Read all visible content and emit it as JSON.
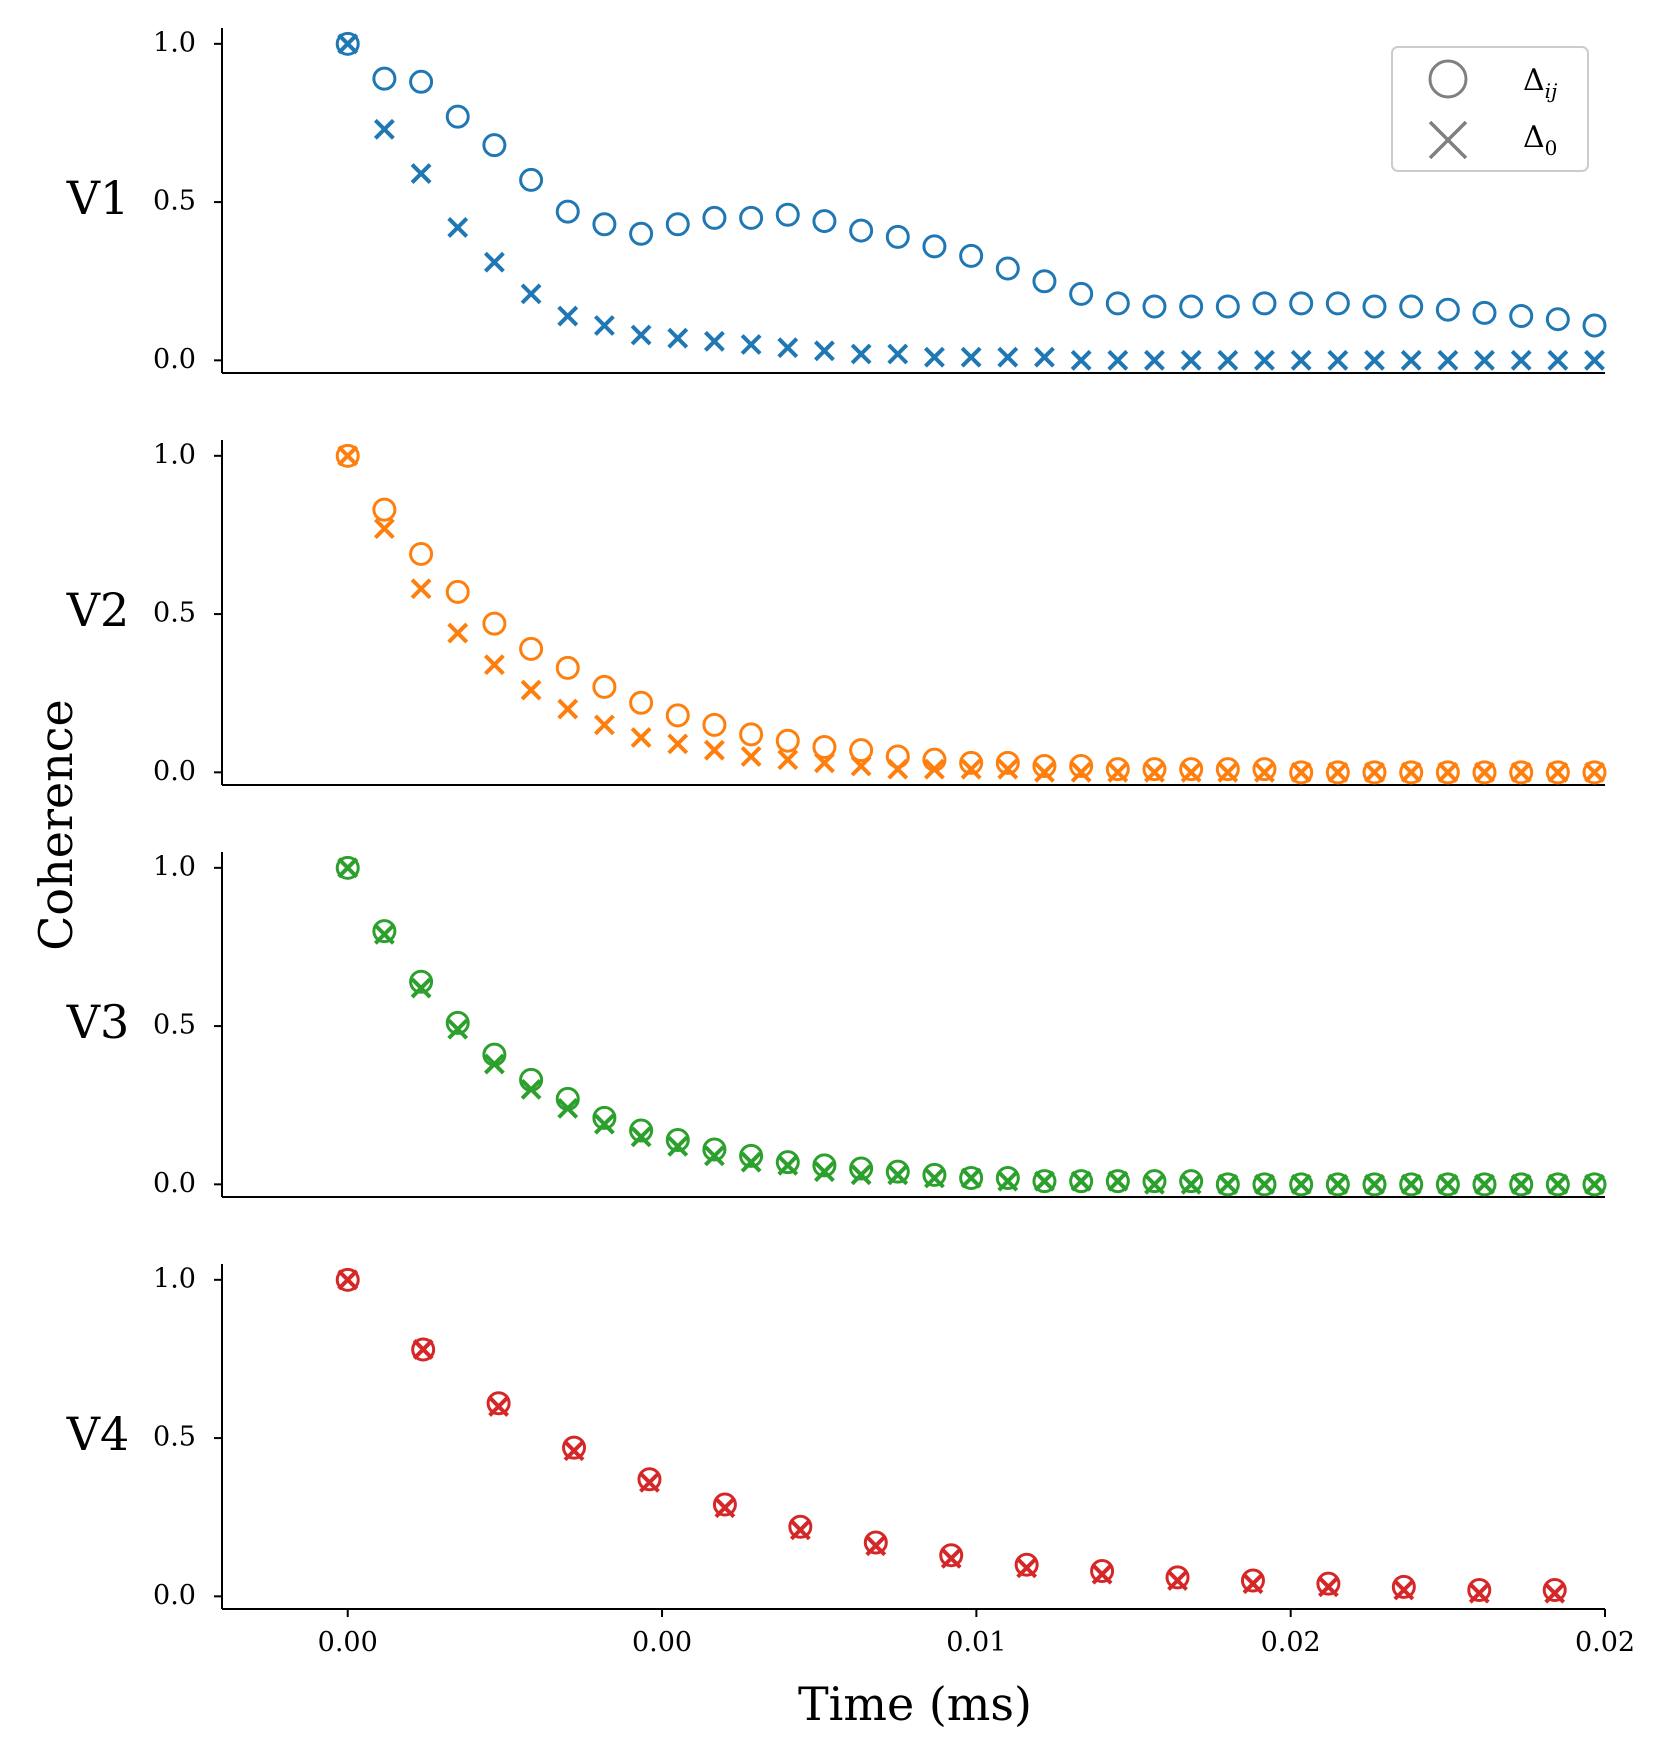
{
  "figure": {
    "ylabel": "Coherence",
    "xlabel": "Time (ms)"
  },
  "legend": {
    "location": "upper-right of first panel",
    "entries": [
      {
        "marker": "circle-icon",
        "label": "Δ",
        "sub": "ij"
      },
      {
        "marker": "x-icon",
        "label": "Δ",
        "sub": "0"
      }
    ],
    "color": "#808080"
  },
  "chart_data": [
    {
      "type": "scatter",
      "panel_label": "V1",
      "color": "#1f77b4",
      "xlim": [
        -0.002,
        0.02
      ],
      "ylim": [
        -0.04,
        1.05
      ],
      "yticks": [
        0.0,
        0.5,
        1.0
      ],
      "ytick_labels": [
        "0.0",
        "0.5",
        "1.0"
      ],
      "series": [
        {
          "marker": "circle",
          "x": [
            0,
            0.000583,
            0.001167,
            0.00175,
            0.002333,
            0.002917,
            0.0035,
            0.004083,
            0.004667,
            0.00525,
            0.005833,
            0.006417,
            0.007,
            0.007583,
            0.008167,
            0.00875,
            0.009333,
            0.009917,
            0.0105,
            0.011083,
            0.011667,
            0.01225,
            0.012833,
            0.013417,
            0.014,
            0.014583,
            0.015167,
            0.01575,
            0.016333,
            0.016917,
            0.0175,
            0.018083,
            0.018667,
            0.01925,
            0.019833
          ],
          "y": [
            1.0,
            0.89,
            0.88,
            0.77,
            0.68,
            0.57,
            0.47,
            0.43,
            0.4,
            0.43,
            0.45,
            0.45,
            0.46,
            0.44,
            0.41,
            0.39,
            0.36,
            0.33,
            0.29,
            0.25,
            0.21,
            0.18,
            0.17,
            0.17,
            0.17,
            0.18,
            0.18,
            0.18,
            0.17,
            0.17,
            0.16,
            0.15,
            0.14,
            0.13,
            0.11
          ]
        },
        {
          "marker": "x",
          "x": [
            0,
            0.000583,
            0.001167,
            0.00175,
            0.002333,
            0.002917,
            0.0035,
            0.004083,
            0.004667,
            0.00525,
            0.005833,
            0.006417,
            0.007,
            0.007583,
            0.008167,
            0.00875,
            0.009333,
            0.009917,
            0.0105,
            0.011083,
            0.011667,
            0.01225,
            0.012833,
            0.013417,
            0.014,
            0.014583,
            0.015167,
            0.01575,
            0.016333,
            0.016917,
            0.0175,
            0.018083,
            0.018667,
            0.01925,
            0.019833
          ],
          "y": [
            1.0,
            0.73,
            0.59,
            0.42,
            0.31,
            0.21,
            0.14,
            0.11,
            0.08,
            0.07,
            0.06,
            0.05,
            0.04,
            0.03,
            0.02,
            0.02,
            0.01,
            0.01,
            0.01,
            0.01,
            0.0,
            0.0,
            0.0,
            0.0,
            0.0,
            0.0,
            0.0,
            0.0,
            0.0,
            0.0,
            0.0,
            0.0,
            0.0,
            0.0,
            0.0
          ]
        }
      ]
    },
    {
      "type": "scatter",
      "panel_label": "V2",
      "color": "#ff7f0e",
      "xlim": [
        -0.002,
        0.02
      ],
      "ylim": [
        -0.04,
        1.05
      ],
      "yticks": [
        0.0,
        0.5,
        1.0
      ],
      "ytick_labels": [
        "0.0",
        "0.5",
        "1.0"
      ],
      "series": [
        {
          "marker": "circle",
          "x": [
            0,
            0.000583,
            0.001167,
            0.00175,
            0.002333,
            0.002917,
            0.0035,
            0.004083,
            0.004667,
            0.00525,
            0.005833,
            0.006417,
            0.007,
            0.007583,
            0.008167,
            0.00875,
            0.009333,
            0.009917,
            0.0105,
            0.011083,
            0.011667,
            0.01225,
            0.012833,
            0.013417,
            0.014,
            0.014583,
            0.015167,
            0.01575,
            0.016333,
            0.016917,
            0.0175,
            0.018083,
            0.018667,
            0.01925,
            0.019833
          ],
          "y": [
            1.0,
            0.83,
            0.69,
            0.57,
            0.47,
            0.39,
            0.33,
            0.27,
            0.22,
            0.18,
            0.15,
            0.12,
            0.1,
            0.08,
            0.07,
            0.05,
            0.04,
            0.03,
            0.03,
            0.02,
            0.02,
            0.01,
            0.01,
            0.01,
            0.01,
            0.01,
            0.0,
            0.0,
            0.0,
            0.0,
            0.0,
            0.0,
            0.0,
            0.0,
            0.0
          ]
        },
        {
          "marker": "x",
          "x": [
            0,
            0.000583,
            0.001167,
            0.00175,
            0.002333,
            0.002917,
            0.0035,
            0.004083,
            0.004667,
            0.00525,
            0.005833,
            0.006417,
            0.007,
            0.007583,
            0.008167,
            0.00875,
            0.009333,
            0.009917,
            0.0105,
            0.011083,
            0.011667,
            0.01225,
            0.012833,
            0.013417,
            0.014,
            0.014583,
            0.015167,
            0.01575,
            0.016333,
            0.016917,
            0.0175,
            0.018083,
            0.018667,
            0.01925,
            0.019833
          ],
          "y": [
            1.0,
            0.77,
            0.58,
            0.44,
            0.34,
            0.26,
            0.2,
            0.15,
            0.11,
            0.09,
            0.07,
            0.05,
            0.04,
            0.03,
            0.02,
            0.01,
            0.01,
            0.01,
            0.01,
            0.0,
            0.0,
            0.0,
            0.0,
            0.0,
            0.0,
            0.0,
            0.0,
            0.0,
            0.0,
            0.0,
            0.0,
            0.0,
            0.0,
            0.0,
            0.0
          ]
        }
      ]
    },
    {
      "type": "scatter",
      "panel_label": "V3",
      "color": "#2ca02c",
      "xlim": [
        -0.002,
        0.02
      ],
      "ylim": [
        -0.04,
        1.05
      ],
      "yticks": [
        0.0,
        0.5,
        1.0
      ],
      "ytick_labels": [
        "0.0",
        "0.5",
        "1.0"
      ],
      "series": [
        {
          "marker": "circle",
          "x": [
            0,
            0.000583,
            0.001167,
            0.00175,
            0.002333,
            0.002917,
            0.0035,
            0.004083,
            0.004667,
            0.00525,
            0.005833,
            0.006417,
            0.007,
            0.007583,
            0.008167,
            0.00875,
            0.009333,
            0.009917,
            0.0105,
            0.011083,
            0.011667,
            0.01225,
            0.012833,
            0.013417,
            0.014,
            0.014583,
            0.015167,
            0.01575,
            0.016333,
            0.016917,
            0.0175,
            0.018083,
            0.018667,
            0.01925,
            0.019833
          ],
          "y": [
            1.0,
            0.8,
            0.64,
            0.51,
            0.41,
            0.33,
            0.27,
            0.21,
            0.17,
            0.14,
            0.11,
            0.09,
            0.07,
            0.06,
            0.05,
            0.04,
            0.03,
            0.02,
            0.02,
            0.01,
            0.01,
            0.01,
            0.01,
            0.01,
            0.0,
            0.0,
            0.0,
            0.0,
            0.0,
            0.0,
            0.0,
            0.0,
            0.0,
            0.0,
            0.0
          ]
        },
        {
          "marker": "x",
          "x": [
            0,
            0.000583,
            0.001167,
            0.00175,
            0.002333,
            0.002917,
            0.0035,
            0.004083,
            0.004667,
            0.00525,
            0.005833,
            0.006417,
            0.007,
            0.007583,
            0.008167,
            0.00875,
            0.009333,
            0.009917,
            0.0105,
            0.011083,
            0.011667,
            0.01225,
            0.012833,
            0.013417,
            0.014,
            0.014583,
            0.015167,
            0.01575,
            0.016333,
            0.016917,
            0.0175,
            0.018083,
            0.018667,
            0.01925,
            0.019833
          ],
          "y": [
            1.0,
            0.79,
            0.62,
            0.49,
            0.38,
            0.3,
            0.24,
            0.19,
            0.15,
            0.12,
            0.09,
            0.07,
            0.06,
            0.04,
            0.03,
            0.03,
            0.02,
            0.02,
            0.01,
            0.01,
            0.01,
            0.01,
            0.0,
            0.0,
            0.0,
            0.0,
            0.0,
            0.0,
            0.0,
            0.0,
            0.0,
            0.0,
            0.0,
            0.0,
            0.0
          ]
        }
      ]
    },
    {
      "type": "scatter",
      "panel_label": "V4",
      "color": "#d62728",
      "xlim": [
        -0.002,
        0.02
      ],
      "ylim": [
        -0.04,
        1.05
      ],
      "yticks": [
        0.0,
        0.5,
        1.0
      ],
      "ytick_labels": [
        "0.0",
        "0.5",
        "1.0"
      ],
      "xticks": [
        0.0,
        0.005,
        0.01,
        0.015,
        0.02
      ],
      "xtick_labels": [
        "0.00",
        "0.00",
        "0.01",
        "0.02",
        "0.02"
      ],
      "series": [
        {
          "marker": "circle",
          "x": [
            0,
            0.0012,
            0.0024,
            0.0036,
            0.0048,
            0.006,
            0.0072,
            0.0084,
            0.0096,
            0.0108,
            0.012,
            0.0132,
            0.0144,
            0.0156,
            0.0168,
            0.018,
            0.0192
          ],
          "y": [
            1.0,
            0.78,
            0.61,
            0.47,
            0.37,
            0.29,
            0.22,
            0.17,
            0.13,
            0.1,
            0.08,
            0.06,
            0.05,
            0.04,
            0.03,
            0.02,
            0.02
          ]
        },
        {
          "marker": "x",
          "x": [
            0,
            0.0012,
            0.0024,
            0.0036,
            0.0048,
            0.006,
            0.0072,
            0.0084,
            0.0096,
            0.0108,
            0.012,
            0.0132,
            0.0144,
            0.0156,
            0.0168,
            0.018,
            0.0192
          ],
          "y": [
            1.0,
            0.78,
            0.6,
            0.46,
            0.36,
            0.28,
            0.21,
            0.16,
            0.12,
            0.09,
            0.07,
            0.05,
            0.04,
            0.03,
            0.02,
            0.01,
            0.01
          ]
        }
      ]
    }
  ]
}
